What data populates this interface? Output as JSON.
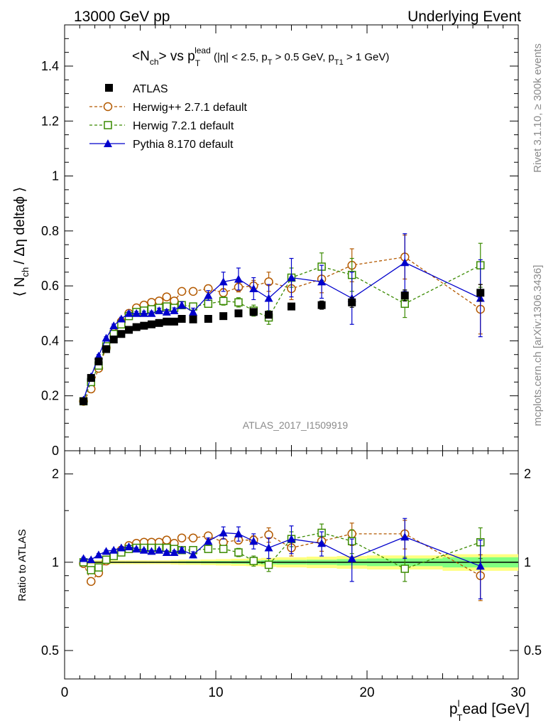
{
  "header": {
    "left": "13000 GeV pp",
    "right": "Underlying Event"
  },
  "side_labels": {
    "rivet": "Rivet 3.1.10, ≥ 300k events",
    "mcplots": "mcplots.cern.ch [arXiv:1306.3436]"
  },
  "chart_data": [
    {
      "type": "scatter",
      "title": {
        "main": "<N",
        "main_sub": "ch",
        "main_after": "> vs p",
        "pt_sub": "T",
        "pt_sup": "lead",
        "cut_open": " (|η| < 2.5, p",
        "cut_sub1": "T",
        "cut_mid": " > 0.5 GeV, p",
        "cut_sub2": "T1",
        "cut_close": " > 1 GeV)"
      },
      "ylabel": {
        "pre": "⟨ N",
        "sub": "ch",
        "post": "/ Δη deltaϕ ⟩"
      },
      "watermark": "ATLAS_2017_I1509919",
      "xlim": [
        0,
        30
      ],
      "ylim": [
        0,
        1.55
      ],
      "yticks": [
        0,
        0.2,
        0.4,
        0.6,
        0.8,
        1,
        1.2,
        1.4
      ],
      "ytick_labels": [
        "0",
        "0.2",
        "0.4",
        "0.6",
        "0.8",
        "1",
        "1.2",
        "1.4"
      ],
      "legend_position": "top-left",
      "series": [
        {
          "name": "ATLAS",
          "color": "#000000",
          "marker": "filled-square",
          "x": [
            1.25,
            1.75,
            2.25,
            2.75,
            3.25,
            3.75,
            4.25,
            4.75,
            5.25,
            5.75,
            6.25,
            6.75,
            7.25,
            7.75,
            8.5,
            9.5,
            10.5,
            11.5,
            12.5,
            13.5,
            15,
            17,
            19,
            22.5,
            27.5
          ],
          "y": [
            0.18,
            0.265,
            0.325,
            0.37,
            0.405,
            0.425,
            0.44,
            0.45,
            0.455,
            0.46,
            0.465,
            0.47,
            0.47,
            0.48,
            0.478,
            0.48,
            0.49,
            0.5,
            0.505,
            0.495,
            0.525,
            0.53,
            0.54,
            0.565,
            0.575
          ],
          "yerr": [
            0.003,
            0.003,
            0.003,
            0.004,
            0.004,
            0.004,
            0.004,
            0.004,
            0.004,
            0.005,
            0.005,
            0.005,
            0.005,
            0.005,
            0.006,
            0.007,
            0.008,
            0.009,
            0.01,
            0.012,
            0.012,
            0.015,
            0.018,
            0.02,
            0.03
          ]
        },
        {
          "name": "Herwig++ 2.7.1 default",
          "color": "#b35900",
          "marker": "open-circle",
          "x": [
            1.25,
            1.75,
            2.25,
            2.75,
            3.25,
            3.75,
            4.25,
            4.75,
            5.25,
            5.75,
            6.25,
            6.75,
            7.25,
            7.75,
            8.5,
            9.5,
            10.5,
            11.5,
            12.5,
            13.5,
            15,
            17,
            19,
            22.5,
            27.5
          ],
          "y": [
            0.18,
            0.225,
            0.3,
            0.375,
            0.43,
            0.47,
            0.5,
            0.52,
            0.53,
            0.54,
            0.545,
            0.56,
            0.545,
            0.58,
            0.58,
            0.59,
            0.575,
            0.595,
            0.6,
            0.615,
            0.59,
            0.625,
            0.675,
            0.705,
            0.515
          ],
          "yerr": [
            0.004,
            0.004,
            0.005,
            0.005,
            0.006,
            0.006,
            0.007,
            0.007,
            0.008,
            0.008,
            0.009,
            0.009,
            0.01,
            0.011,
            0.012,
            0.013,
            0.015,
            0.017,
            0.02,
            0.035,
            0.04,
            0.05,
            0.06,
            0.08,
            0.09
          ]
        },
        {
          "name": "Herwig 7.2.1 default",
          "color": "#3a8a00",
          "marker": "open-square",
          "x": [
            1.25,
            1.75,
            2.25,
            2.75,
            3.25,
            3.75,
            4.25,
            4.75,
            5.25,
            5.75,
            6.25,
            6.75,
            7.25,
            7.75,
            8.5,
            9.5,
            10.5,
            11.5,
            12.5,
            13.5,
            15,
            17,
            19,
            22.5,
            27.5
          ],
          "y": [
            0.18,
            0.25,
            0.31,
            0.38,
            0.425,
            0.46,
            0.49,
            0.505,
            0.51,
            0.515,
            0.52,
            0.525,
            0.52,
            0.53,
            0.525,
            0.535,
            0.545,
            0.54,
            0.51,
            0.485,
            0.63,
            0.67,
            0.64,
            0.535,
            0.675
          ],
          "yerr": [
            0.004,
            0.004,
            0.005,
            0.005,
            0.006,
            0.006,
            0.007,
            0.007,
            0.008,
            0.008,
            0.009,
            0.009,
            0.01,
            0.011,
            0.012,
            0.013,
            0.015,
            0.017,
            0.02,
            0.025,
            0.035,
            0.05,
            0.06,
            0.05,
            0.08
          ]
        },
        {
          "name": "Pythia 8.170 default",
          "color": "#0000cc",
          "marker": "filled-triangle",
          "x": [
            1.25,
            1.75,
            2.25,
            2.75,
            3.25,
            3.75,
            4.25,
            4.75,
            5.25,
            5.75,
            6.25,
            6.75,
            7.25,
            7.75,
            8.5,
            9.5,
            10.5,
            11.5,
            12.5,
            13.5,
            15,
            17,
            19,
            22.5,
            27.5
          ],
          "y": [
            0.185,
            0.27,
            0.345,
            0.41,
            0.455,
            0.48,
            0.5,
            0.5,
            0.5,
            0.5,
            0.51,
            0.505,
            0.51,
            0.53,
            0.505,
            0.565,
            0.615,
            0.625,
            0.59,
            0.555,
            0.63,
            0.615,
            0.555,
            0.685,
            0.555
          ]
        }
      ],
      "yerr_pythia": [
        0.004,
        0.004,
        0.005,
        0.005,
        0.006,
        0.006,
        0.007,
        0.007,
        0.008,
        0.008,
        0.009,
        0.009,
        0.01,
        0.012,
        0.014,
        0.018,
        0.035,
        0.04,
        0.04,
        0.05,
        0.07,
        0.06,
        0.095,
        0.105,
        0.14
      ]
    },
    {
      "type": "scatter",
      "title": "",
      "ylabel": "Ratio to ATLAS",
      "xlabel": {
        "pre": "p",
        "sup": "l",
        "sub": "T",
        "post": "ead [GeV]"
      },
      "xlim": [
        0,
        30
      ],
      "ylim": [
        0.4,
        2.4
      ],
      "yscale": "log",
      "xticks": [
        0,
        10,
        20,
        30
      ],
      "xtick_labels": [
        "0",
        "10",
        "20",
        "30"
      ],
      "yticks": [
        0.5,
        1,
        2
      ],
      "ytick_labels": [
        "0.5",
        "1",
        "2"
      ],
      "reference_line": 1,
      "band_colors": {
        "outer": "#ffff80",
        "inner": "#80ff80"
      },
      "bins_edges": [
        1,
        1.5,
        2,
        2.5,
        3,
        3.5,
        4,
        4.5,
        5,
        5.5,
        6,
        6.5,
        7,
        7.5,
        8,
        9,
        10,
        11,
        12,
        13,
        14,
        16,
        18,
        20,
        25,
        30
      ],
      "band_outer": [
        0.015,
        0.015,
        0.015,
        0.015,
        0.015,
        0.015,
        0.015,
        0.015,
        0.015,
        0.015,
        0.015,
        0.015,
        0.018,
        0.02,
        0.02,
        0.022,
        0.025,
        0.028,
        0.03,
        0.035,
        0.04,
        0.045,
        0.05,
        0.055,
        0.065
      ],
      "band_inner": [
        0.005,
        0.005,
        0.005,
        0.005,
        0.005,
        0.005,
        0.005,
        0.005,
        0.005,
        0.005,
        0.005,
        0.005,
        0.006,
        0.007,
        0.008,
        0.009,
        0.01,
        0.012,
        0.014,
        0.016,
        0.018,
        0.02,
        0.025,
        0.03,
        0.04
      ],
      "series": [
        {
          "name": "Herwig++ 2.7.1 default",
          "color": "#b35900",
          "marker": "open-circle",
          "x": [
            1.25,
            1.75,
            2.25,
            2.75,
            3.25,
            3.75,
            4.25,
            4.75,
            5.25,
            5.75,
            6.25,
            6.75,
            7.25,
            7.75,
            8.5,
            9.5,
            10.5,
            11.5,
            12.5,
            13.5,
            15,
            17,
            19,
            22.5,
            27.5
          ],
          "y": [
            0.99,
            0.86,
            0.92,
            1.01,
            1.06,
            1.1,
            1.14,
            1.16,
            1.17,
            1.17,
            1.17,
            1.19,
            1.16,
            1.21,
            1.21,
            1.23,
            1.17,
            1.19,
            1.19,
            1.24,
            1.12,
            1.18,
            1.25,
            1.25,
            0.9
          ],
          "yerr": [
            0.01,
            0.01,
            0.01,
            0.01,
            0.01,
            0.01,
            0.01,
            0.01,
            0.01,
            0.01,
            0.01,
            0.015,
            0.015,
            0.015,
            0.02,
            0.02,
            0.03,
            0.035,
            0.04,
            0.07,
            0.07,
            0.09,
            0.11,
            0.14,
            0.16
          ]
        },
        {
          "name": "Herwig 7.2.1 default",
          "color": "#3a8a00",
          "marker": "open-square",
          "x": [
            1.25,
            1.75,
            2.25,
            2.75,
            3.25,
            3.75,
            4.25,
            4.75,
            5.25,
            5.75,
            6.25,
            6.75,
            7.25,
            7.75,
            8.5,
            9.5,
            10.5,
            11.5,
            12.5,
            13.5,
            15,
            17,
            19,
            22.5,
            27.5
          ],
          "y": [
            1.0,
            0.94,
            0.96,
            1.02,
            1.05,
            1.08,
            1.11,
            1.12,
            1.12,
            1.12,
            1.12,
            1.12,
            1.11,
            1.1,
            1.1,
            1.11,
            1.11,
            1.08,
            1.01,
            0.98,
            1.2,
            1.26,
            1.18,
            0.95,
            1.17
          ],
          "yerr": [
            0.01,
            0.01,
            0.01,
            0.01,
            0.01,
            0.01,
            0.01,
            0.01,
            0.01,
            0.01,
            0.01,
            0.015,
            0.015,
            0.015,
            0.02,
            0.02,
            0.03,
            0.035,
            0.04,
            0.05,
            0.07,
            0.09,
            0.11,
            0.09,
            0.14
          ]
        },
        {
          "name": "Pythia 8.170 default",
          "color": "#0000cc",
          "marker": "filled-triangle",
          "x": [
            1.25,
            1.75,
            2.25,
            2.75,
            3.25,
            3.75,
            4.25,
            4.75,
            5.25,
            5.75,
            6.25,
            6.75,
            7.25,
            7.75,
            8.5,
            9.5,
            10.5,
            11.5,
            12.5,
            13.5,
            15,
            17,
            19,
            22.5,
            27.5
          ],
          "y": [
            1.03,
            1.02,
            1.06,
            1.09,
            1.1,
            1.12,
            1.13,
            1.11,
            1.1,
            1.09,
            1.1,
            1.08,
            1.08,
            1.1,
            1.06,
            1.18,
            1.26,
            1.25,
            1.18,
            1.12,
            1.2,
            1.16,
            1.03,
            1.22,
            0.97
          ],
          "yerr": [
            0.01,
            0.01,
            0.01,
            0.01,
            0.01,
            0.01,
            0.01,
            0.01,
            0.01,
            0.01,
            0.01,
            0.015,
            0.015,
            0.02,
            0.025,
            0.03,
            0.06,
            0.07,
            0.07,
            0.09,
            0.13,
            0.11,
            0.17,
            0.19,
            0.22
          ]
        }
      ]
    }
  ]
}
